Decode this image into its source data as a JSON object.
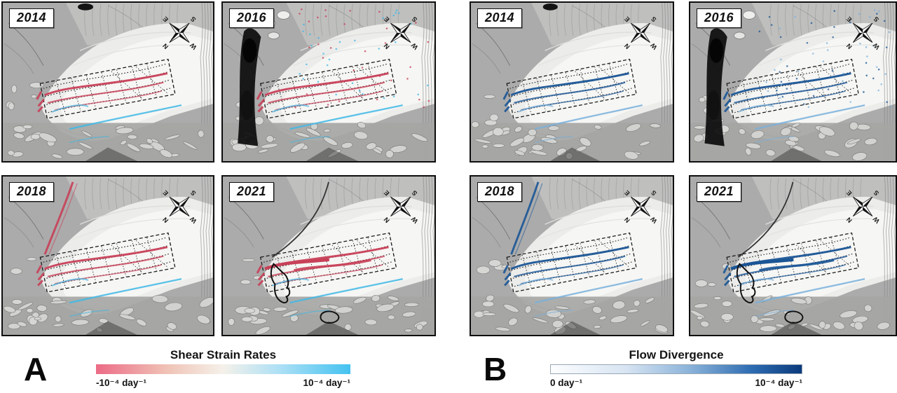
{
  "figure": {
    "compass_letters": [
      "N",
      "E",
      "S",
      "W"
    ],
    "panels": [
      {
        "letter": "A",
        "colorbar": {
          "title": "Shear Strain Rates",
          "min_label": "-10⁻⁴ day⁻¹",
          "max_label": "10⁻⁴ day⁻¹",
          "stops": [
            {
              "c": "#ec6b86",
              "p": 0
            },
            {
              "c": "#f0c3b6",
              "p": 28
            },
            {
              "c": "#f5f1ea",
              "p": 50
            },
            {
              "c": "#ade0f5",
              "p": 72
            },
            {
              "c": "#44c2f0",
              "p": 100
            }
          ]
        },
        "art": {
          "main": "#c84058",
          "alt": "#41b8e5"
        },
        "tiles": [
          {
            "year": "2014",
            "variant": "plain"
          },
          {
            "year": "2016",
            "variant": "speckled"
          },
          {
            "year": "2018",
            "variant": "ridge"
          },
          {
            "year": "2021",
            "variant": "front"
          }
        ]
      },
      {
        "letter": "B",
        "colorbar": {
          "title": "Flow Divergence",
          "min_label": "0 day⁻¹",
          "max_label": "10⁻⁴ day⁻¹",
          "stops": [
            {
              "c": "#fdfeff",
              "p": 0
            },
            {
              "c": "#d7e4f2",
              "p": 30
            },
            {
              "c": "#8cb4da",
              "p": 55
            },
            {
              "c": "#2e6cb2",
              "p": 80
            },
            {
              "c": "#0b3a7c",
              "p": 100
            }
          ]
        },
        "art": {
          "main": "#1a5596",
          "alt": "#79b0dc"
        },
        "tiles": [
          {
            "year": "2014",
            "variant": "plain"
          },
          {
            "year": "2016",
            "variant": "speckled"
          },
          {
            "year": "2018",
            "variant": "ridge"
          },
          {
            "year": "2021",
            "variant": "front"
          }
        ]
      }
    ]
  }
}
